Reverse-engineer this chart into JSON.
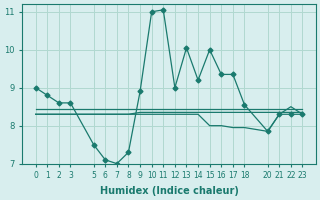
{
  "xlabel": "Humidex (Indice chaleur)",
  "x_values": [
    0,
    1,
    2,
    3,
    5,
    6,
    7,
    8,
    9,
    10,
    11,
    12,
    13,
    14,
    15,
    16,
    17,
    18,
    20,
    21,
    22,
    23
  ],
  "line1_y": [
    9.0,
    8.8,
    8.6,
    8.6,
    7.5,
    7.1,
    7.0,
    7.3,
    8.9,
    11.0,
    11.05,
    9.0,
    10.05,
    9.2,
    10.0,
    9.35,
    9.35,
    8.55,
    7.85,
    8.3,
    8.3,
    8.3
  ],
  "line2_y": [
    8.45,
    8.45,
    8.45,
    8.45,
    8.45,
    8.45,
    8.45,
    8.45,
    8.45,
    8.45,
    8.45,
    8.45,
    8.45,
    8.45,
    8.45,
    8.45,
    8.45,
    8.45,
    8.45,
    8.45,
    8.45,
    8.45
  ],
  "line3_y": [
    8.3,
    8.3,
    8.3,
    8.3,
    8.3,
    8.3,
    8.3,
    8.3,
    8.3,
    8.3,
    8.3,
    8.3,
    8.3,
    8.3,
    8.0,
    8.0,
    7.95,
    7.95,
    7.85,
    8.3,
    8.5,
    8.3
  ],
  "line4_y": [
    8.3,
    8.3,
    8.3,
    8.3,
    8.3,
    8.3,
    8.3,
    8.3,
    8.35,
    8.35,
    8.35,
    8.35,
    8.35,
    8.35,
    8.35,
    8.35,
    8.35,
    8.35,
    8.35,
    8.35,
    8.35,
    8.35
  ],
  "bg_color": "#d8eeee",
  "line_color": "#1a7a6e",
  "grid_color": "#b0d8d0",
  "ylim": [
    7.0,
    11.2
  ],
  "yticks": [
    7,
    8,
    9,
    10,
    11
  ],
  "xticks": [
    0,
    1,
    2,
    3,
    5,
    6,
    7,
    8,
    9,
    10,
    11,
    12,
    13,
    14,
    15,
    16,
    17,
    18,
    20,
    21,
    22,
    23
  ]
}
